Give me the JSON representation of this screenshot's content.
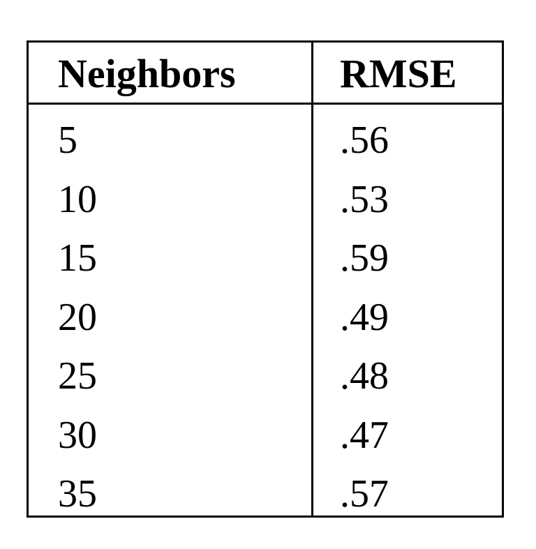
{
  "table": {
    "headers": {
      "neighbors": "Neighbors",
      "rmse": "RMSE"
    },
    "rows": [
      {
        "neighbors": "5",
        "rmse": ".56"
      },
      {
        "neighbors": "10",
        "rmse": ".53"
      },
      {
        "neighbors": "15",
        "rmse": ".59"
      },
      {
        "neighbors": "20",
        "rmse": ".49"
      },
      {
        "neighbors": "25",
        "rmse": ".48"
      },
      {
        "neighbors": "30",
        "rmse": ".47"
      },
      {
        "neighbors": "35",
        "rmse": ".57"
      }
    ]
  }
}
